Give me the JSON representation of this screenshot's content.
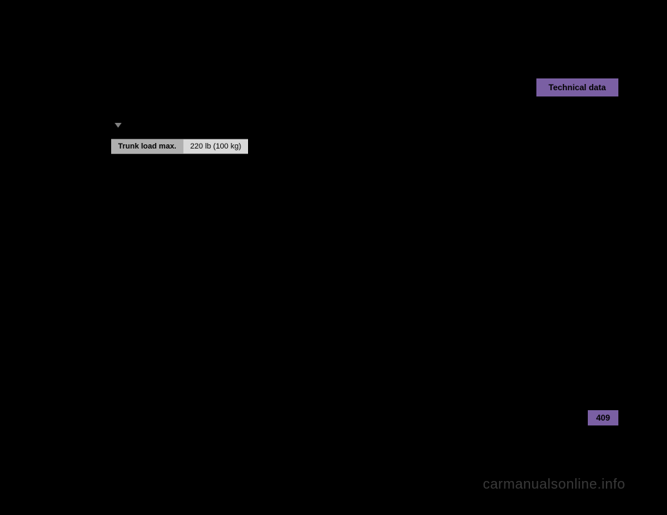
{
  "section": {
    "title": "Technical data",
    "background_color": "#7a5fa3",
    "text_color": "#000000",
    "font_size": 12,
    "font_weight": "bold"
  },
  "table": {
    "label": "Trunk load max.",
    "value": "220 lb (100 kg)",
    "label_bg": "#b0b0b0",
    "value_bg": "#d9d9d9",
    "font_size": 11
  },
  "page": {
    "number": "409",
    "background_color": "#7a5fa3",
    "text_color": "#000000",
    "font_size": 12
  },
  "watermark": {
    "text": "carmanualsonline.info",
    "color": "#3a3a3a",
    "font_size": 20
  },
  "background_color": "#000000"
}
